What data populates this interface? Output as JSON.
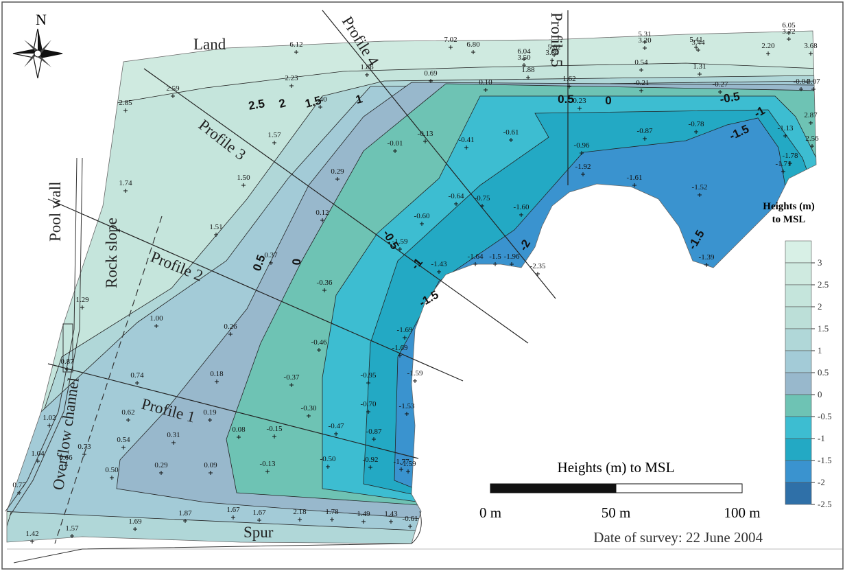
{
  "map": {
    "north": "N",
    "places": [
      "Land",
      "Profile 4",
      "Profile 5",
      "Profile 3",
      "Profile 2",
      "Profile 1",
      "Pool wall",
      "Rock slope",
      "Overflow channel",
      "Spur"
    ],
    "contour_labels": [
      2.5,
      2,
      1.5,
      1,
      0.5,
      0,
      -0.5,
      -1,
      -1.5,
      0.5,
      0,
      -0.5,
      -1,
      -1.5,
      -2,
      -1.5
    ],
    "spot_heights": {
      "values": [
        6.12,
        7.02,
        6.8,
        6.04,
        3.5,
        5.62,
        3.84,
        5.31,
        3.2,
        5.41,
        3.44,
        6.05,
        3.72,
        2.2,
        3.68,
        2.23,
        1.86,
        0.69,
        1.88,
        0.54,
        1.31,
        0.1,
        1.62,
        -0.21,
        -0.27,
        -0.04,
        3.07,
        2.59,
        1.4,
        0.23,
        2.85,
        1.57,
        -0.13,
        -0.41,
        -0.61,
        -0.01,
        -0.87,
        -0.78,
        2.87,
        -1.13,
        2.56,
        -0.96,
        -1.78,
        -1.71,
        -1.92,
        -1.61,
        -1.52,
        1.74,
        1.5,
        0.29,
        -0.64,
        -0.75,
        -0.6,
        -1.6,
        0.12,
        1.51,
        -1.59,
        -1.43,
        -1.64,
        -1.5,
        -1.96,
        -2.35,
        -1.39,
        0.37,
        -0.36,
        1.29,
        1.0,
        0.26,
        -0.46,
        -1.69,
        -1.69,
        -1.59,
        -0.95,
        0.87,
        0.74,
        0.18,
        -0.37,
        -0.7,
        -1.53,
        -0.3,
        0.62,
        0.19,
        0.08,
        -0.15,
        -0.47,
        -0.87,
        1.02,
        0.54,
        0.31,
        -1.59,
        0.73,
        1.04,
        0.66,
        0.29,
        0.09,
        -0.13,
        -0.5,
        -0.92,
        -1.77,
        0.5,
        0.77,
        1.87,
        1.67,
        1.67,
        2.18,
        1.78,
        1.49,
        1.43,
        1.69,
        1.57,
        1.42,
        -0.61
      ],
      "value_labels": [
        "6.12",
        "7.02",
        "6.80",
        "6.04",
        "3.50",
        "5.62",
        "3.84",
        "5.31",
        "3.20",
        "5.41",
        "3.44",
        "6.05",
        "3.72",
        "2.20",
        "3.68",
        "2.23",
        "1.86",
        "0.69",
        "1.88",
        "0.54",
        "1.31",
        "0.10",
        "1.62",
        "-0.21",
        "-0.27",
        "-0.04",
        "3.07",
        "2.59",
        "1.40",
        "0.23",
        "2.85",
        "1.57",
        "-0.13",
        "-0.41",
        "-0.61",
        "-0.01",
        "-0.87",
        "-0.78",
        "2.87",
        "-1.13",
        "2.56",
        "-0.96",
        "-1.78",
        "-1.71",
        "-1.92",
        "-1.61",
        "-1.52",
        "1.74",
        "1.50",
        "0.29",
        "-0.64",
        "-0.75",
        "-0.60",
        "-1.60",
        "0.12",
        "1.51",
        "-1.59",
        "-1.43",
        "-1.64",
        "-1.5",
        "-1.96",
        "-2.35",
        "-1.39",
        "0.37",
        "-0.36",
        "1.29",
        "1.00",
        "0.26",
        "-0.46",
        "-1.69",
        "-1.69",
        "-1.59",
        "-0.95",
        "0.87",
        "0.74",
        "0.18",
        "-0.37",
        "-0.70",
        "-1.53",
        "-0.30",
        "0.62",
        "0.19",
        "0.08",
        "-0.15",
        "-0.47",
        "-0.87",
        "1.02",
        "0.54",
        "0.31",
        "-1.59",
        "0.73",
        "1.04",
        "0.66",
        "0.29",
        "0.09",
        "-0.13",
        "-0.50",
        "-0.92",
        "-1.77",
        "0.50",
        "0.77",
        "1.87",
        "1.67",
        "1.67",
        "2.18",
        "1.78",
        "1.49",
        "1.43",
        "1.69",
        "1.57",
        "1.42",
        "-0.61"
      ]
    },
    "legend": {
      "title": "Heights (m)\nto MSL",
      "ticks": [
        3,
        2.5,
        2,
        1.5,
        1,
        0.5,
        0,
        -0.5,
        -1,
        -1.5,
        -2,
        -2.5
      ],
      "colors": [
        "#d8f0e6",
        "#cfeae0",
        "#c5e5dc",
        "#bcdfd8",
        "#b0d7d8",
        "#a3cbd7",
        "#98b8cc",
        "#6ec3b4",
        "#3dbdd1",
        "#23a9c4",
        "#3a93cf",
        "#2f70a8"
      ]
    },
    "scale": {
      "title": "Heights (m) to MSL",
      "labels": [
        "0 m",
        "50 m",
        "100 m"
      ]
    },
    "survey_date": "Date of survey: 22 June 2004"
  }
}
